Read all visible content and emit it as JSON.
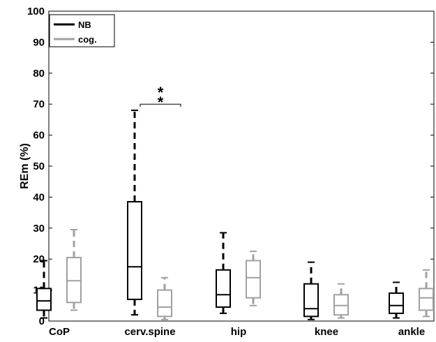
{
  "chart_data": {
    "type": "box",
    "ylabel": "REm (%)",
    "ylim": [
      0,
      100
    ],
    "yticks": [
      "0",
      "10",
      "20",
      "30",
      "40",
      "50",
      "60",
      "70",
      "80",
      "90",
      "100"
    ],
    "categories": [
      "CoP",
      "cerv.spine",
      "hip",
      "knee",
      "ankle"
    ],
    "legend": {
      "position": "top-left",
      "entries": [
        "NB",
        "cog."
      ]
    },
    "series": [
      {
        "name": "NB",
        "color": "#000000",
        "boxes": [
          {
            "whisker_low": 1.0,
            "q1": 3.5,
            "median": 6.5,
            "q3": 10.5,
            "whisker_high": 19.5
          },
          {
            "whisker_low": 2.0,
            "q1": 7.0,
            "median": 17.5,
            "q3": 38.5,
            "whisker_high": 68.0
          },
          {
            "whisker_low": 2.5,
            "q1": 4.5,
            "median": 8.5,
            "q3": 16.5,
            "whisker_high": 28.5
          },
          {
            "whisker_low": 0.5,
            "q1": 1.5,
            "median": 4.0,
            "q3": 12.0,
            "whisker_high": 19.0
          },
          {
            "whisker_low": 1.0,
            "q1": 2.5,
            "median": 5.0,
            "q3": 9.0,
            "whisker_high": 12.5
          }
        ]
      },
      {
        "name": "cog.",
        "color": "#a0a0a0",
        "boxes": [
          {
            "whisker_low": 3.5,
            "q1": 6.0,
            "median": 13.0,
            "q3": 20.5,
            "whisker_high": 29.5
          },
          {
            "whisker_low": 0.5,
            "q1": 1.5,
            "median": 4.5,
            "q3": 10.0,
            "whisker_high": 14.0
          },
          {
            "whisker_low": 5.0,
            "q1": 7.5,
            "median": 14.0,
            "q3": 19.5,
            "whisker_high": 22.5
          },
          {
            "whisker_low": 1.0,
            "q1": 2.0,
            "median": 5.0,
            "q3": 8.5,
            "whisker_high": 12.0
          },
          {
            "whisker_low": 1.5,
            "q1": 3.5,
            "median": 7.5,
            "q3": 10.5,
            "whisker_high": 16.5
          }
        ]
      }
    ],
    "annotations": [
      {
        "text": "*",
        "category": "cerv.spine"
      },
      {
        "text": "*",
        "category": "cerv.spine"
      }
    ]
  }
}
